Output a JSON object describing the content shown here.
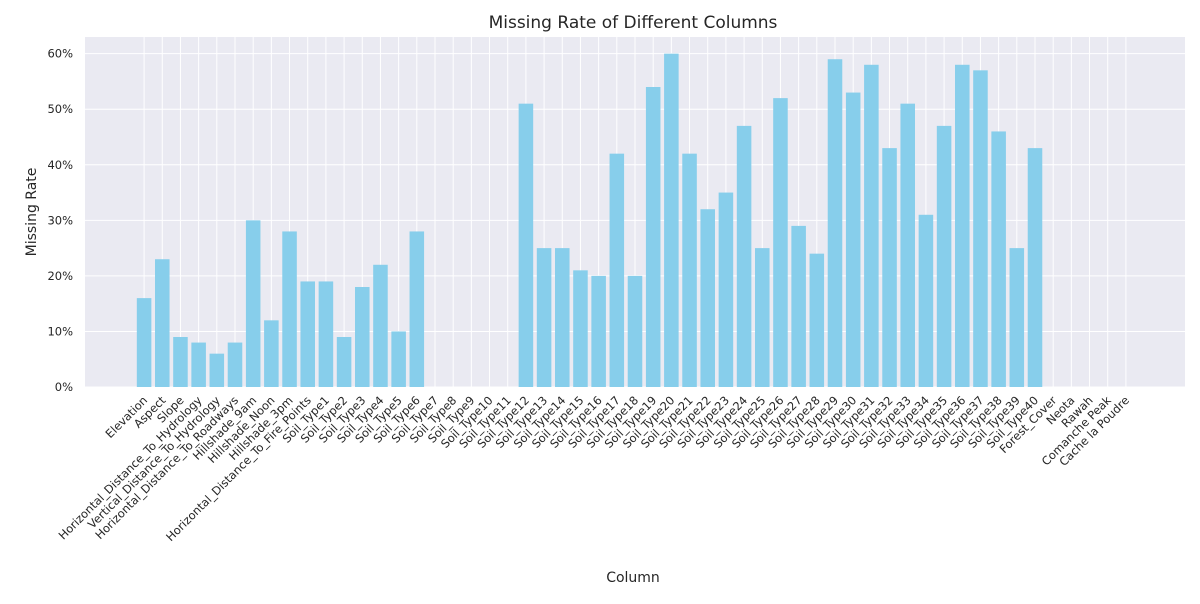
{
  "chart_data": {
    "type": "bar",
    "title": "Missing Rate of Different Columns",
    "xlabel": "Column",
    "ylabel": "Missing Rate",
    "ylim": [
      0,
      0.63
    ],
    "yticks": [
      0,
      0.1,
      0.2,
      0.3,
      0.4,
      0.5,
      0.6
    ],
    "yticklabels": [
      "0%",
      "10%",
      "20%",
      "30%",
      "40%",
      "50%",
      "60%"
    ],
    "grid": true,
    "bar_color": "#87ceeb",
    "background_color": "#eaeaf2",
    "categories": [
      "Elevation",
      "Aspect",
      "Slope",
      "Horizontal_Distance_To_Hydrology",
      "Vertical_Distance_To_Hydrology",
      "Horizontal_Distance_To_Roadways",
      "Hillshade_9am",
      "Hillshade_Noon",
      "Hillshade_3pm",
      "Horizontal_Distance_To_Fire_Points",
      "Soil_Type1",
      "Soil_Type2",
      "Soil_Type3",
      "Soil_Type4",
      "Soil_Type5",
      "Soil_Type6",
      "Soil_Type7",
      "Soil_Type8",
      "Soil_Type9",
      "Soil_Type10",
      "Soil_Type11",
      "Soil_Type12",
      "Soil_Type13",
      "Soil_Type14",
      "Soil_Type15",
      "Soil_Type16",
      "Soil_Type17",
      "Soil_Type18",
      "Soil_Type19",
      "Soil_Type20",
      "Soil_Type21",
      "Soil_Type22",
      "Soil_Type23",
      "Soil_Type24",
      "Soil_Type25",
      "Soil_Type26",
      "Soil_Type27",
      "Soil_Type28",
      "Soil_Type29",
      "Soil_Type30",
      "Soil_Type31",
      "Soil_Type32",
      "Soil_Type33",
      "Soil_Type34",
      "Soil_Type35",
      "Soil_Type36",
      "Soil_Type37",
      "Soil_Type38",
      "Soil_Type39",
      "Soil_Type40",
      "Forest_Cover",
      "Neota",
      "Rawah",
      "Comanche Peak",
      "Cache la Poudre"
    ],
    "values": [
      0.16,
      0.23,
      0.09,
      0.08,
      0.06,
      0.08,
      0.3,
      0.12,
      0.28,
      0.19,
      0.19,
      0.09,
      0.18,
      0.22,
      0.1,
      0.28,
      0,
      0,
      0,
      0,
      0,
      0.51,
      0.25,
      0.25,
      0.21,
      0.2,
      0.42,
      0.2,
      0.54,
      0.6,
      0.42,
      0.32,
      0.35,
      0.47,
      0.25,
      0.52,
      0.29,
      0.24,
      0.59,
      0.53,
      0.58,
      0.43,
      0.51,
      0.31,
      0.47,
      0.58,
      0.57,
      0.46,
      0.25,
      0.43,
      0,
      0,
      0,
      0,
      0
    ]
  }
}
